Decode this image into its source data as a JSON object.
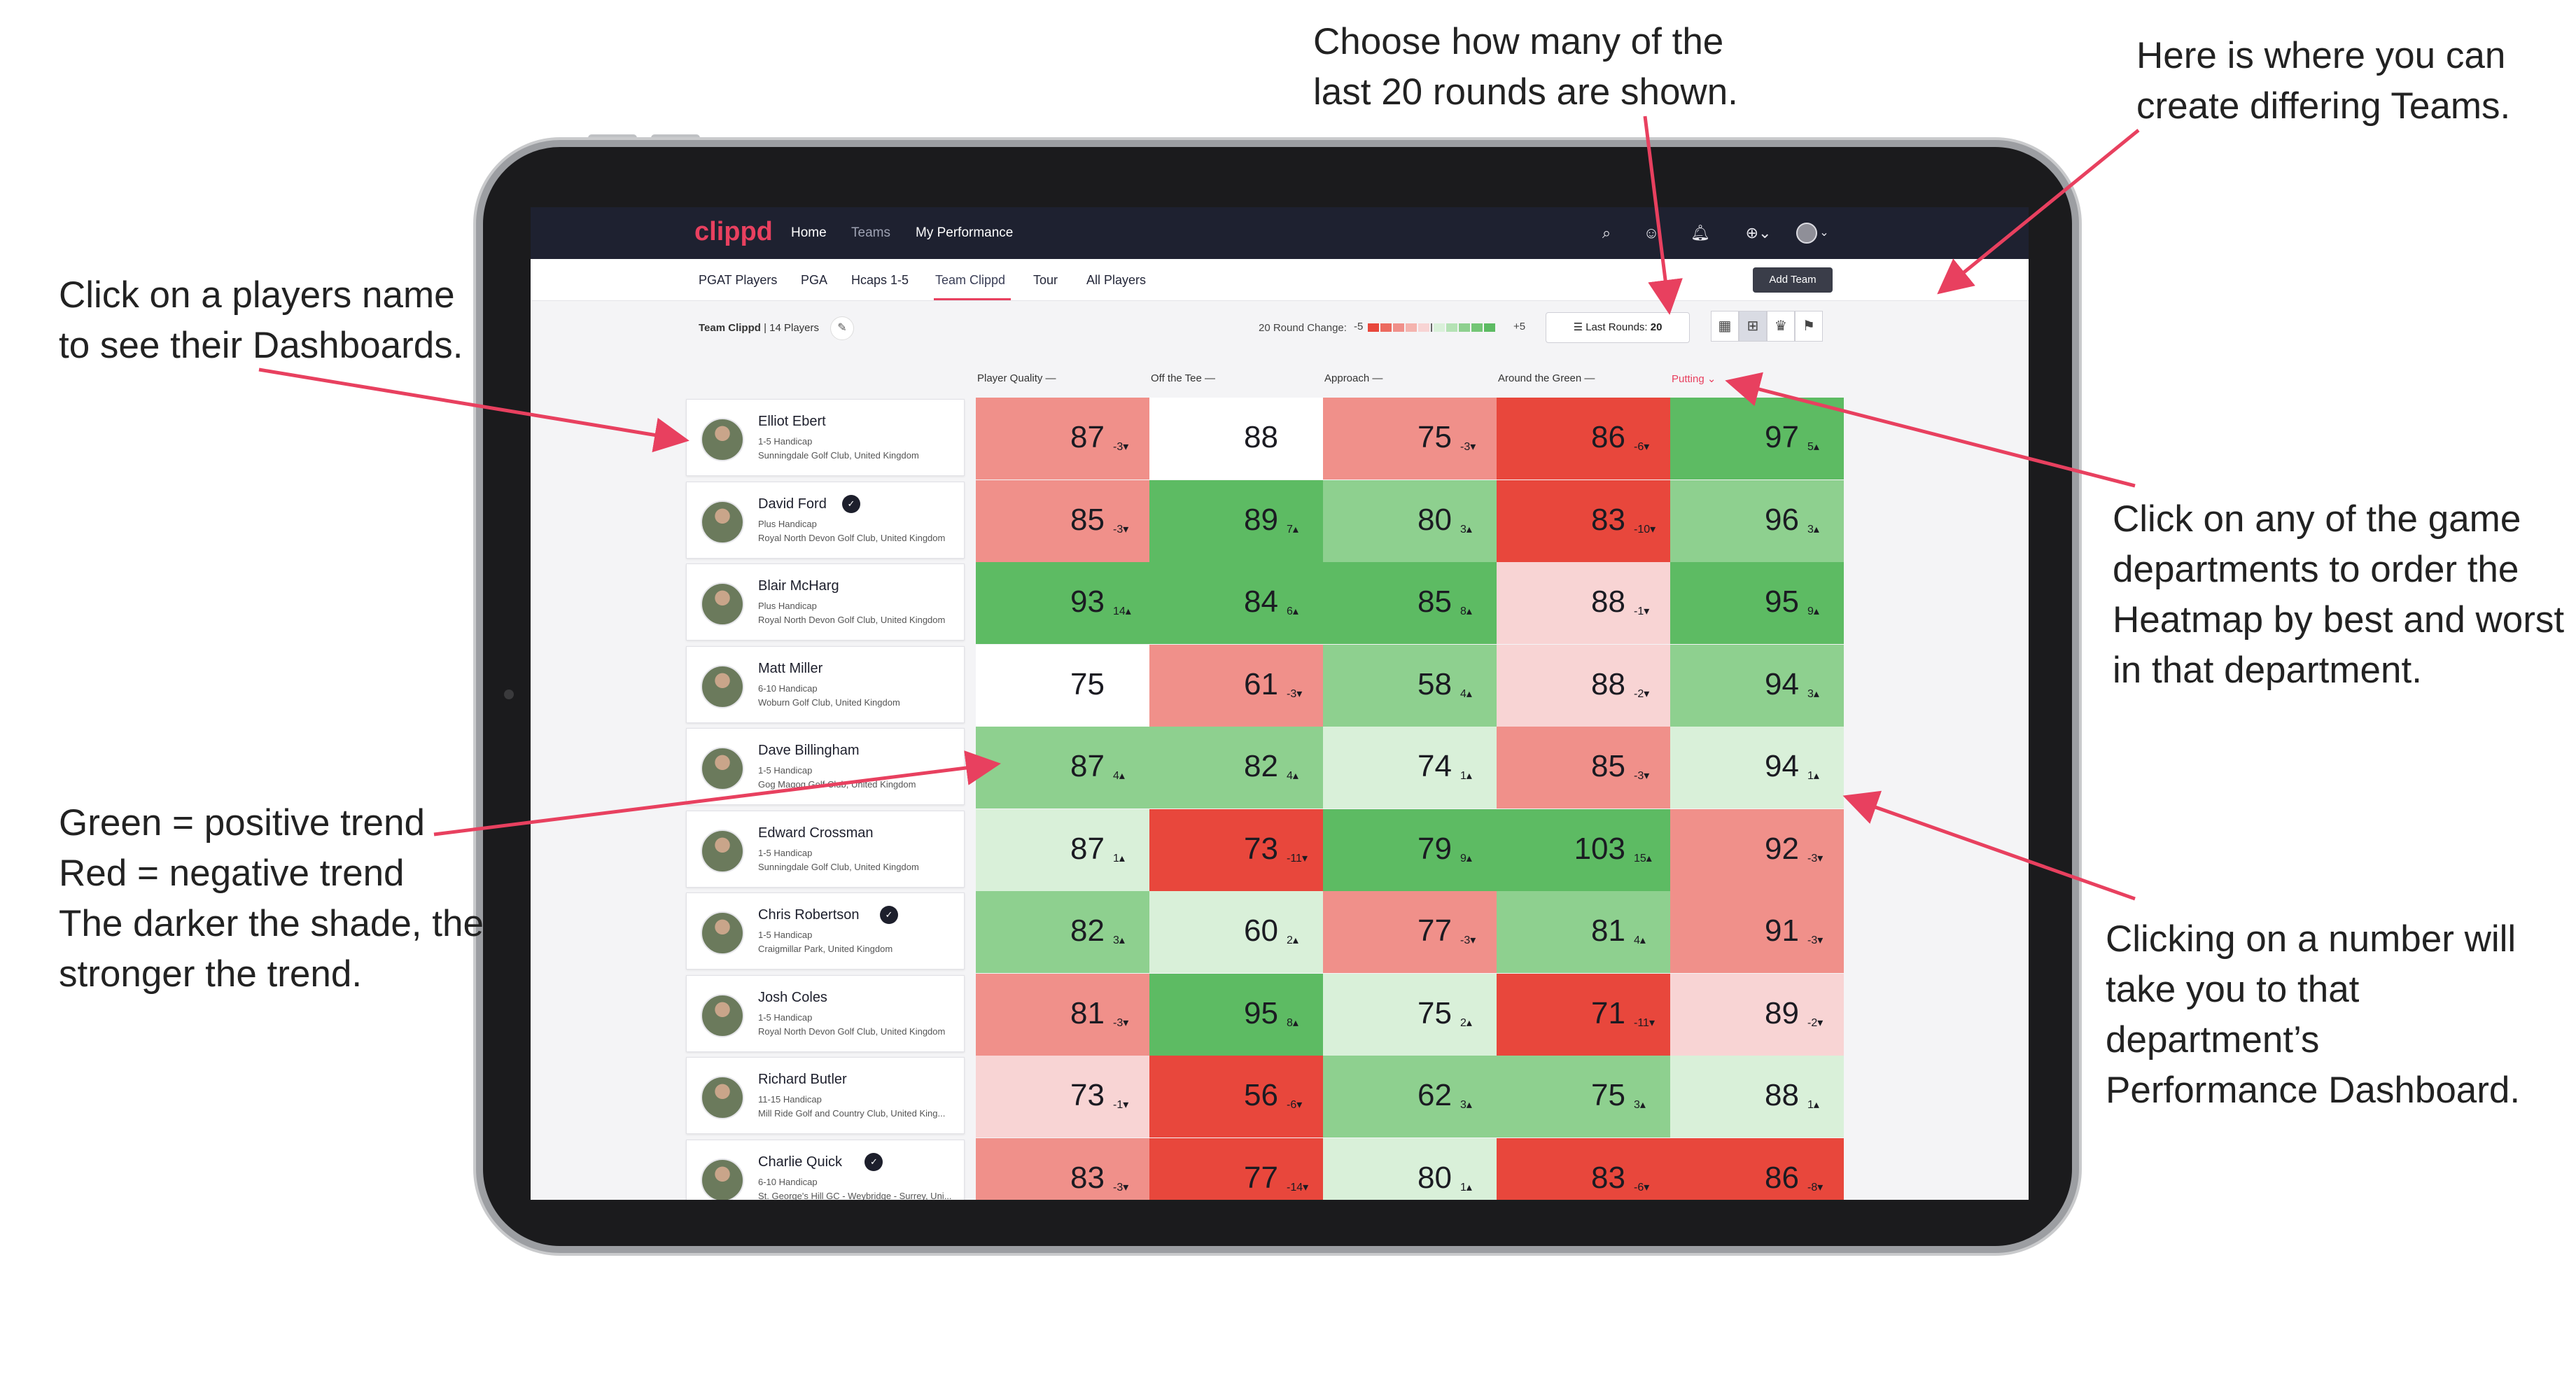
{
  "colors": {
    "accent": "#e8405f",
    "nav_bg": "#1e2130",
    "strong_green": "#5dbb63",
    "mid_green": "#8ed08f",
    "light_green": "#d9f0d9",
    "neutral": "#ffffff",
    "light_red": "#f8d4d4",
    "mid_red": "#f0908a",
    "strong_red": "#e8473c"
  },
  "app": {
    "logo": "clippd",
    "nav": [
      "Home",
      "Teams",
      "My Performance"
    ],
    "icons": [
      "search-icon",
      "user-icon",
      "bell-icon",
      "plus-circle-icon",
      "profile-avatar-icon"
    ]
  },
  "subnav": {
    "tabs": [
      "PGAT Players",
      "PGA",
      "Hcaps 1-5",
      "Team Clippd",
      "Tour",
      "All Players"
    ],
    "active_tab": "Team Clippd",
    "add_team": "Add Team"
  },
  "filters": {
    "team_name": "Team Clippd",
    "player_count": "14 Players",
    "round_change_label": "20 Round Change:",
    "scale_min": "-5",
    "scale_max": "+5",
    "last_rounds_label": "Last Rounds:",
    "last_rounds_value": "20"
  },
  "columns": [
    {
      "label": "Player Quality",
      "sort": "—"
    },
    {
      "label": "Off the Tee",
      "sort": "—"
    },
    {
      "label": "Approach",
      "sort": "—"
    },
    {
      "label": "Around the Green",
      "sort": "—"
    },
    {
      "label": "Putting",
      "sort": "⌄"
    }
  ],
  "players": [
    {
      "name": "Elliot Ebert",
      "badge": false,
      "handicap": "1-5 Handicap",
      "club": "Sunningdale Golf Club, United Kingdom"
    },
    {
      "name": "David Ford",
      "badge": true,
      "handicap": "Plus Handicap",
      "club": "Royal North Devon Golf Club, United Kingdom"
    },
    {
      "name": "Blair McHarg",
      "badge": false,
      "handicap": "Plus Handicap",
      "club": "Royal North Devon Golf Club, United Kingdom"
    },
    {
      "name": "Matt Miller",
      "badge": false,
      "handicap": "6-10 Handicap",
      "club": "Woburn Golf Club, United Kingdom"
    },
    {
      "name": "Dave Billingham",
      "badge": false,
      "handicap": "1-5 Handicap",
      "club": "Gog Magog Golf Club, United Kingdom"
    },
    {
      "name": "Edward Crossman",
      "badge": false,
      "handicap": "1-5 Handicap",
      "club": "Sunningdale Golf Club, United Kingdom"
    },
    {
      "name": "Chris Robertson",
      "badge": true,
      "handicap": "1-5 Handicap",
      "club": "Craigmillar Park, United Kingdom"
    },
    {
      "name": "Josh Coles",
      "badge": false,
      "handicap": "1-5 Handicap",
      "club": "Royal North Devon Golf Club, United Kingdom"
    },
    {
      "name": "Richard Butler",
      "badge": false,
      "handicap": "11-15 Handicap",
      "club": "Mill Ride Golf and Country Club, United King..."
    },
    {
      "name": "Charlie Quick",
      "badge": true,
      "handicap": "6-10 Handicap",
      "club": "St. George's Hill GC - Weybridge - Surrey, Uni..."
    }
  ],
  "heatmap": [
    [
      {
        "v": "87",
        "t": "-3▾",
        "c": "mid_red"
      },
      {
        "v": "88",
        "t": "",
        "c": "neutral"
      },
      {
        "v": "75",
        "t": "-3▾",
        "c": "mid_red"
      },
      {
        "v": "86",
        "t": "-6▾",
        "c": "strong_red"
      },
      {
        "v": "97",
        "t": "5▴",
        "c": "strong_green"
      }
    ],
    [
      {
        "v": "85",
        "t": "-3▾",
        "c": "mid_red"
      },
      {
        "v": "89",
        "t": "7▴",
        "c": "strong_green"
      },
      {
        "v": "80",
        "t": "3▴",
        "c": "mid_green"
      },
      {
        "v": "83",
        "t": "-10▾",
        "c": "strong_red"
      },
      {
        "v": "96",
        "t": "3▴",
        "c": "mid_green"
      }
    ],
    [
      {
        "v": "93",
        "t": "14▴",
        "c": "strong_green"
      },
      {
        "v": "84",
        "t": "6▴",
        "c": "strong_green"
      },
      {
        "v": "85",
        "t": "8▴",
        "c": "strong_green"
      },
      {
        "v": "88",
        "t": "-1▾",
        "c": "light_red"
      },
      {
        "v": "95",
        "t": "9▴",
        "c": "strong_green"
      }
    ],
    [
      {
        "v": "75",
        "t": "",
        "c": "neutral"
      },
      {
        "v": "61",
        "t": "-3▾",
        "c": "mid_red"
      },
      {
        "v": "58",
        "t": "4▴",
        "c": "mid_green"
      },
      {
        "v": "88",
        "t": "-2▾",
        "c": "light_red"
      },
      {
        "v": "94",
        "t": "3▴",
        "c": "mid_green"
      }
    ],
    [
      {
        "v": "87",
        "t": "4▴",
        "c": "mid_green"
      },
      {
        "v": "82",
        "t": "4▴",
        "c": "mid_green"
      },
      {
        "v": "74",
        "t": "1▴",
        "c": "light_green"
      },
      {
        "v": "85",
        "t": "-3▾",
        "c": "mid_red"
      },
      {
        "v": "94",
        "t": "1▴",
        "c": "light_green"
      }
    ],
    [
      {
        "v": "87",
        "t": "1▴",
        "c": "light_green"
      },
      {
        "v": "73",
        "t": "-11▾",
        "c": "strong_red"
      },
      {
        "v": "79",
        "t": "9▴",
        "c": "strong_green"
      },
      {
        "v": "103",
        "t": "15▴",
        "c": "strong_green"
      },
      {
        "v": "92",
        "t": "-3▾",
        "c": "mid_red"
      }
    ],
    [
      {
        "v": "82",
        "t": "3▴",
        "c": "mid_green"
      },
      {
        "v": "60",
        "t": "2▴",
        "c": "light_green"
      },
      {
        "v": "77",
        "t": "-3▾",
        "c": "mid_red"
      },
      {
        "v": "81",
        "t": "4▴",
        "c": "mid_green"
      },
      {
        "v": "91",
        "t": "-3▾",
        "c": "mid_red"
      }
    ],
    [
      {
        "v": "81",
        "t": "-3▾",
        "c": "mid_red"
      },
      {
        "v": "95",
        "t": "8▴",
        "c": "strong_green"
      },
      {
        "v": "75",
        "t": "2▴",
        "c": "light_green"
      },
      {
        "v": "71",
        "t": "-11▾",
        "c": "strong_red"
      },
      {
        "v": "89",
        "t": "-2▾",
        "c": "light_red"
      }
    ],
    [
      {
        "v": "73",
        "t": "-1▾",
        "c": "light_red"
      },
      {
        "v": "56",
        "t": "-6▾",
        "c": "strong_red"
      },
      {
        "v": "62",
        "t": "3▴",
        "c": "mid_green"
      },
      {
        "v": "75",
        "t": "3▴",
        "c": "mid_green"
      },
      {
        "v": "88",
        "t": "1▴",
        "c": "light_green"
      }
    ],
    [
      {
        "v": "83",
        "t": "-3▾",
        "c": "mid_red"
      },
      {
        "v": "77",
        "t": "-14▾",
        "c": "strong_red"
      },
      {
        "v": "80",
        "t": "1▴",
        "c": "light_green"
      },
      {
        "v": "83",
        "t": "-6▾",
        "c": "strong_red"
      },
      {
        "v": "86",
        "t": "-8▾",
        "c": "strong_red"
      }
    ]
  ],
  "annotations": {
    "players": [
      "Click on a players name",
      "to see their Dashboards."
    ],
    "rounds": [
      "Choose how many of the",
      "last 20 rounds are shown."
    ],
    "teams": [
      "Here is where you can",
      "create differing Teams."
    ],
    "trend": [
      "Green = positive trend",
      "Red = negative trend",
      "The darker the shade, the",
      "stronger the trend."
    ],
    "departments": [
      "Click on any of the game",
      "departments to order the",
      "Heatmap by best and worst",
      "in that department."
    ],
    "numbers": [
      "Clicking on a number will",
      "take you to that department’s",
      "Performance Dashboard."
    ]
  }
}
